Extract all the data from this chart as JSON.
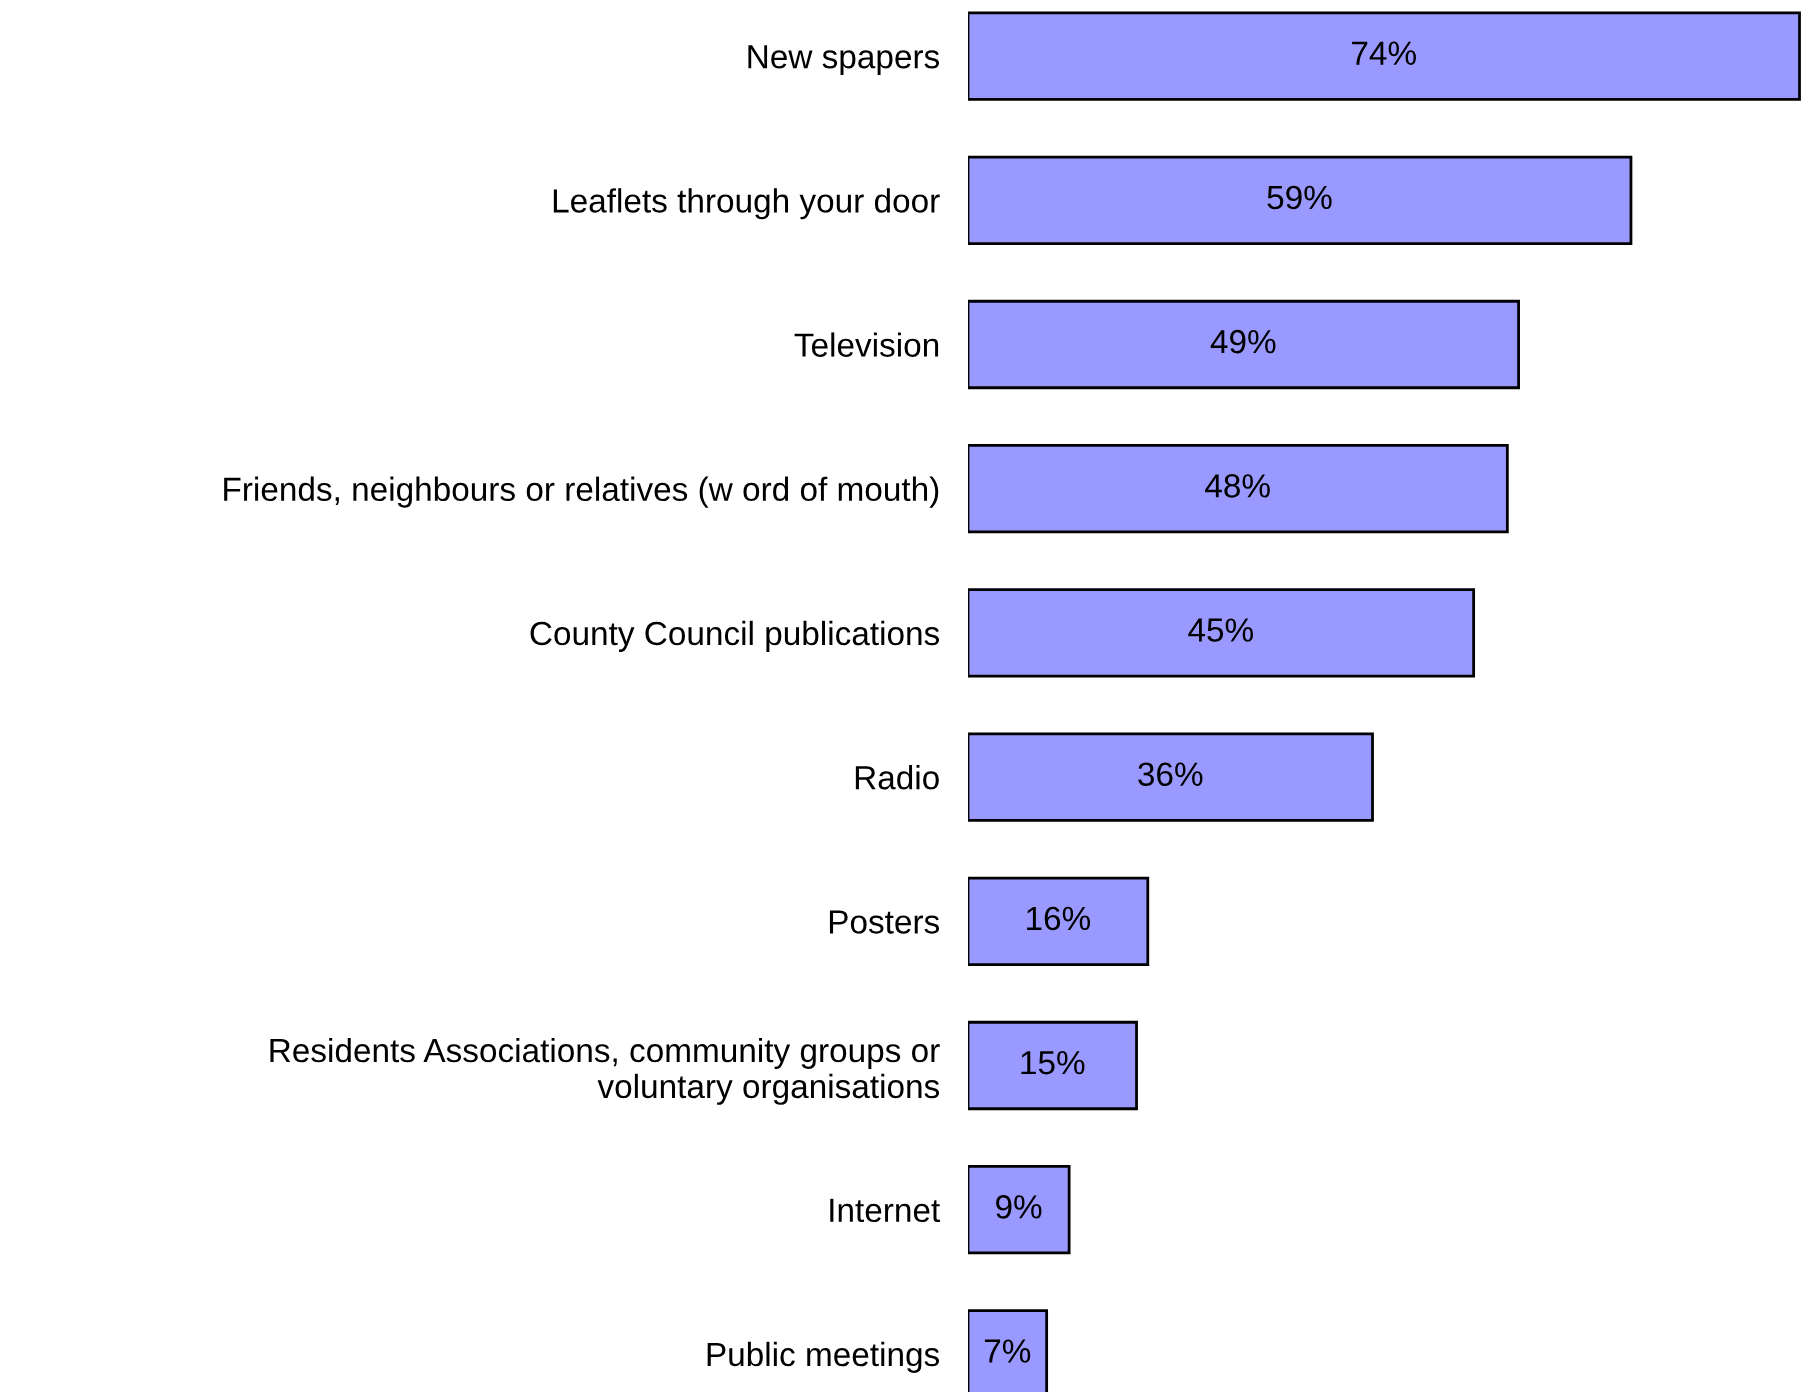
{
  "chart_data": {
    "type": "bar",
    "orientation": "horizontal",
    "grid": false,
    "tick_labels": "y",
    "categories": [
      "New spapers",
      "Leaflets through your door",
      "Television",
      "Friends, neighbours or relatives (w ord of mouth)",
      "County Council publications",
      "Radio",
      "Posters",
      "Residents Associations, community groups or\nvoluntary organisations",
      "Internet",
      "Public meetings"
    ],
    "values": [
      74,
      59,
      49,
      48,
      45,
      36,
      16,
      15,
      9,
      7
    ],
    "value_labels": [
      "74%",
      "59%",
      "49%",
      "48%",
      "45%",
      "36%",
      "16%",
      "15%",
      "9%",
      "7%"
    ],
    "color": "#9999ff"
  }
}
